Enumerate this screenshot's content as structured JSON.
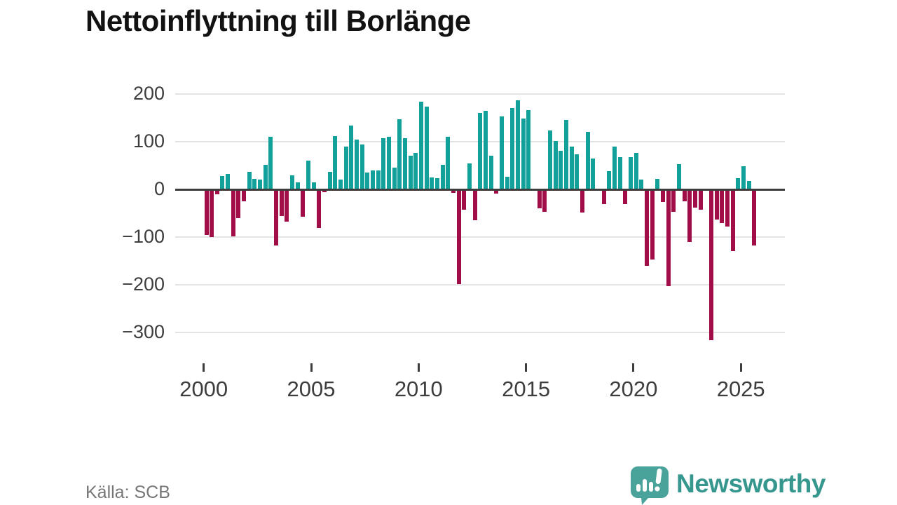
{
  "title": "Nettoinflyttning till Borlänge",
  "source": "Källa: SCB",
  "branding": {
    "name": "Newsworthy",
    "icon": "newsworthy-speech-bubble-chart-icon"
  },
  "colors": {
    "positive_bar": "#12a19a",
    "negative_bar": "#a00d47",
    "gridline": "#e4e4e4",
    "zero_line": "#3d3d3d",
    "axis_text": "#3d3d3d",
    "title_text": "#121212",
    "source_text": "#767676",
    "brand_teal": "#35978e"
  },
  "chart_data": {
    "type": "bar",
    "title": "Nettoinflyttning till Borlänge",
    "xlabel": "",
    "ylabel": "",
    "x_unit": "quarter",
    "start_period": "2000 Q1",
    "end_period": "2025 Q3",
    "x_tick_labels": [
      "2000",
      "2005",
      "2010",
      "2015",
      "2020",
      "2025"
    ],
    "y_ticks": [
      200,
      100,
      0,
      -100,
      -200,
      -300
    ],
    "y_tick_display": [
      "200",
      "100",
      "0",
      "−100",
      "−200",
      "−300"
    ],
    "ylim": [
      -340,
      230
    ],
    "grid": "horizontal",
    "legend": "none",
    "values": [
      -95,
      -100,
      -10,
      28,
      32,
      -98,
      -60,
      -25,
      37,
      22,
      20,
      52,
      110,
      -117,
      -56,
      -68,
      30,
      14,
      -57,
      61,
      14,
      -81,
      -6,
      37,
      112,
      20,
      90,
      134,
      105,
      94,
      36,
      40,
      39,
      108,
      111,
      46,
      147,
      107,
      71,
      77,
      184,
      173,
      25,
      24,
      51,
      110,
      -8,
      -198,
      -42,
      54,
      -64,
      160,
      164,
      71,
      -9,
      153,
      26,
      170,
      187,
      148,
      166,
      0,
      -40,
      -47,
      123,
      101,
      81,
      145,
      89,
      74,
      -49,
      121,
      65,
      0,
      -31,
      38,
      89,
      67,
      -31,
      67,
      76,
      20,
      -161,
      -147,
      22,
      -26,
      -203,
      -47,
      53,
      -25,
      -110,
      -38,
      -43,
      0,
      -316,
      -63,
      -70,
      -78,
      -130,
      24,
      48,
      18,
      -117
    ]
  }
}
